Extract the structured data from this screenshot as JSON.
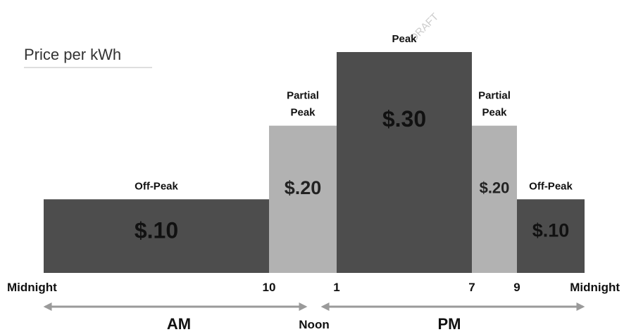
{
  "title": "Price per kWh",
  "watermark": "DRAFT",
  "colors": {
    "dark": "#4d4d4d",
    "light": "#b2b2b2",
    "text": "#111111",
    "price_dark": "#111111",
    "price_light": "#222222",
    "arrow": "#9a9a9a",
    "watermark": "#cccccc"
  },
  "chart_data": {
    "type": "bar",
    "title": "Price per kWh",
    "x_unit": "hour of day",
    "ylabel": "",
    "xlim": [
      0,
      24
    ],
    "segments": [
      {
        "label": "Off-Peak",
        "start": 0,
        "end": 10,
        "price": 0.1,
        "price_label": "$.10",
        "shade": "dark"
      },
      {
        "label": "Partial Peak",
        "start": 10,
        "end": 13,
        "price": 0.2,
        "price_label": "$.20",
        "shade": "light"
      },
      {
        "label": "Peak",
        "start": 13,
        "end": 19,
        "price": 0.3,
        "price_label": "$.30",
        "shade": "dark"
      },
      {
        "label": "Partial Peak",
        "start": 19,
        "end": 21,
        "price": 0.2,
        "price_label": "$.20",
        "shade": "light"
      },
      {
        "label": "Off-Peak",
        "start": 21,
        "end": 24,
        "price": 0.1,
        "price_label": "$.10",
        "shade": "dark"
      }
    ],
    "tick_labels": [
      {
        "at": 0,
        "label": "Midnight"
      },
      {
        "at": 10,
        "label": "10"
      },
      {
        "at": 13,
        "label": "1"
      },
      {
        "at": 19,
        "label": "7"
      },
      {
        "at": 21,
        "label": "9"
      },
      {
        "at": 24,
        "label": "Midnight"
      }
    ],
    "periods": [
      {
        "label": "AM",
        "start": 0,
        "end": 12
      },
      {
        "label": "PM",
        "start": 12,
        "end": 24
      }
    ],
    "noon_label": "Noon"
  }
}
